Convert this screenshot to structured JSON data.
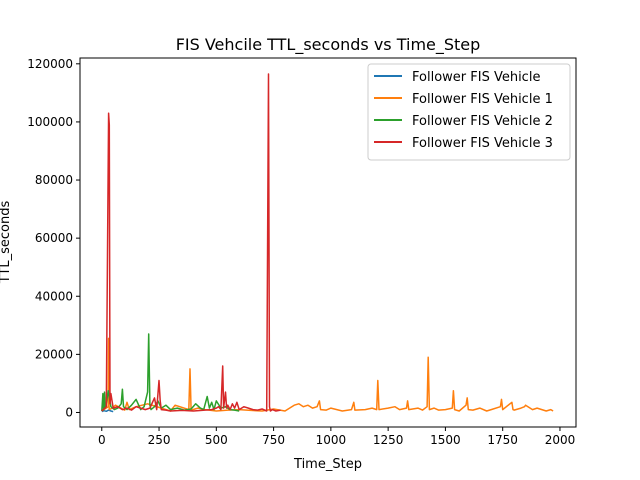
{
  "chart_data": {
    "type": "line",
    "title": "FIS Vehcile TTL_seconds vs Time_Step",
    "xlabel": "Time_Step",
    "ylabel": "TTL_seconds",
    "xlim": [
      -95,
      2070
    ],
    "ylim": [
      -5000,
      122000
    ],
    "xticks": [
      0,
      250,
      500,
      750,
      1000,
      1250,
      1500,
      1750,
      2000
    ],
    "yticks": [
      0,
      20000,
      40000,
      60000,
      80000,
      100000,
      120000
    ],
    "xtick_labels": [
      "0",
      "250",
      "500",
      "750",
      "1000",
      "1250",
      "1500",
      "1750",
      "2000"
    ],
    "ytick_labels": [
      "0",
      "20000",
      "40000",
      "60000",
      "80000",
      "100000",
      "120000"
    ],
    "grid": false,
    "legend_position": "top-right",
    "series": [
      {
        "name": "Follower FIS Vehicle",
        "color": "#1f77b4",
        "x": [
          0,
          10,
          20,
          30,
          40,
          50
        ],
        "y": [
          300,
          600,
          400,
          800,
          500,
          300
        ]
      },
      {
        "name": "Follower FIS Vehicle 1",
        "color": "#ff7f0e",
        "x": [
          0,
          28,
          30,
          31,
          33,
          45,
          60,
          100,
          110,
          120,
          150,
          200,
          260,
          300,
          320,
          380,
          385,
          390,
          420,
          450,
          500,
          550,
          600,
          650,
          700,
          750,
          800,
          820,
          840,
          860,
          880,
          900,
          920,
          940,
          950,
          955,
          980,
          1000,
          1050,
          1090,
          1100,
          1105,
          1150,
          1180,
          1200,
          1205,
          1210,
          1250,
          1280,
          1300,
          1330,
          1335,
          1340,
          1380,
          1400,
          1420,
          1425,
          1430,
          1450,
          1470,
          1500,
          1530,
          1535,
          1540,
          1560,
          1590,
          1595,
          1600,
          1620,
          1650,
          1680,
          1700,
          1740,
          1745,
          1750,
          1790,
          1795,
          1800,
          1830,
          1845,
          1850,
          1880,
          1900,
          1940,
          1960,
          1970
        ],
        "y": [
          500,
          2000,
          25500,
          3000,
          1000,
          1500,
          2500,
          800,
          3500,
          1000,
          2000,
          3000,
          1500,
          500,
          2500,
          1000,
          15000,
          800,
          1500,
          1000,
          500,
          800,
          1000,
          700,
          500,
          1200,
          500,
          1500,
          2500,
          3000,
          2000,
          2500,
          1500,
          2000,
          4000,
          1000,
          800,
          1500,
          500,
          1000,
          3500,
          800,
          1000,
          1500,
          1000,
          11000,
          1000,
          1500,
          2000,
          1000,
          1500,
          4000,
          1000,
          1500,
          800,
          2000,
          19000,
          1000,
          1500,
          800,
          1000,
          1500,
          7500,
          1000,
          500,
          2500,
          5000,
          1000,
          800,
          1500,
          500,
          1000,
          2000,
          4500,
          1000,
          3500,
          1000,
          800,
          1500,
          2000,
          2500,
          1000,
          1500,
          500,
          1000,
          500
        ]
      },
      {
        "name": "Follower FIS Vehicle 2",
        "color": "#2ca02c",
        "x": [
          0,
          5,
          8,
          12,
          15,
          20,
          28,
          40,
          55,
          70,
          85,
          90,
          95,
          110,
          130,
          150,
          170,
          185,
          200,
          205,
          210,
          215,
          230,
          245,
          260,
          280,
          300,
          330,
          360,
          390,
          410,
          430,
          445,
          460,
          470,
          480,
          490,
          500,
          520,
          540,
          560,
          580,
          600
        ],
        "y": [
          500,
          6500,
          800,
          7000,
          1500,
          3000,
          7500,
          2000,
          1000,
          1500,
          3000,
          8000,
          2000,
          1000,
          2500,
          4500,
          1000,
          2000,
          7000,
          27000,
          2500,
          1000,
          2000,
          4000,
          1500,
          2500,
          1000,
          1500,
          800,
          1200,
          3000,
          1500,
          1000,
          5500,
          1500,
          3500,
          1000,
          4000,
          1500,
          2000,
          1000,
          800,
          500
        ]
      },
      {
        "name": "Follower FIS Vehicle 3",
        "color": "#d62728",
        "x": [
          0,
          20,
          30,
          33,
          36,
          40,
          50,
          70,
          90,
          110,
          130,
          150,
          170,
          190,
          210,
          230,
          240,
          250,
          255,
          260,
          280,
          300,
          350,
          400,
          450,
          480,
          500,
          510,
          520,
          528,
          532,
          540,
          545,
          550,
          560,
          570,
          580,
          590,
          600,
          620,
          640,
          660,
          680,
          700,
          720,
          728,
          732,
          736,
          745,
          760,
          780
        ],
        "y": [
          500,
          2000,
          103000,
          99000,
          3000,
          6500,
          1500,
          2000,
          1000,
          1500,
          800,
          2000,
          1500,
          1000,
          1500,
          5000,
          1000,
          11000,
          4000,
          1000,
          800,
          500,
          700,
          500,
          800,
          1000,
          1500,
          2000,
          1000,
          16000,
          1500,
          7000,
          1500,
          2500,
          1000,
          3000,
          1500,
          3500,
          1000,
          2000,
          1500,
          1000,
          800,
          1200,
          500,
          116500,
          2000,
          500,
          1000,
          500,
          800
        ]
      }
    ]
  }
}
